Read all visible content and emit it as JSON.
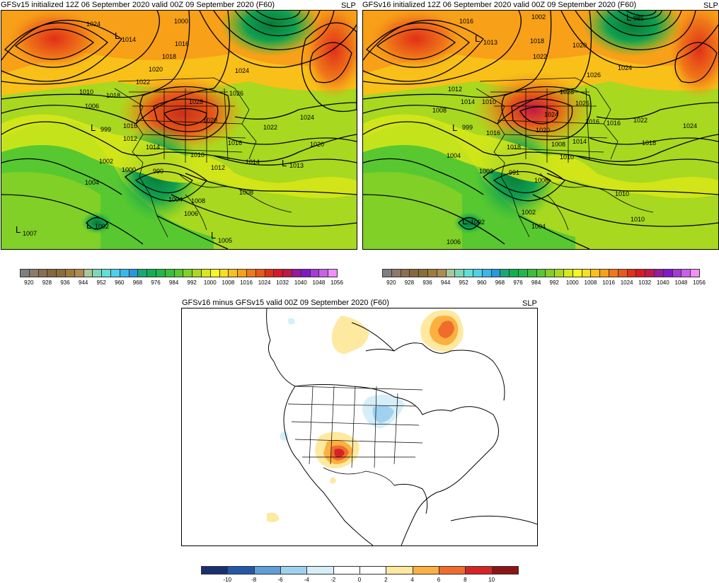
{
  "panels": {
    "left": {
      "title": "GFSv15 initialized 12Z 06 September 2020 valid 00Z 09 September 2020 (F60)",
      "variable": "SLP",
      "contour_labels": [
        "1024",
        "1014",
        "1016",
        "1018",
        "1000",
        "1020",
        "1022",
        "1024",
        "1026",
        "1028",
        "1010",
        "1006",
        "1018",
        "1020",
        "1016",
        "999",
        "1012",
        "1014",
        "1002",
        "1000",
        "990",
        "1004",
        "1016",
        "1010",
        "1012",
        "1014",
        "1013",
        "1020",
        "1022",
        "1024",
        "1008",
        "1004",
        "1006",
        "1008",
        "1005",
        "1002",
        "1007"
      ],
      "low_centers": [
        {
          "label": "L",
          "value": "1014"
        },
        {
          "label": "L",
          "value": "999"
        },
        {
          "label": "L",
          "value": "1013"
        },
        {
          "label": "L",
          "value": "1002"
        },
        {
          "label": "L",
          "value": "1007"
        },
        {
          "label": "L",
          "value": "1005"
        }
      ]
    },
    "right": {
      "title": "GFSv16 initialized 12Z 06 September 2020 valid 00Z 09 September 2020 (F60)",
      "variable": "SLP",
      "contour_labels": [
        "1002",
        "985",
        "1016",
        "1013",
        "1018",
        "1020",
        "1022",
        "1024",
        "1026",
        "1028",
        "1012",
        "1014",
        "1008",
        "1010",
        "1026",
        "1024",
        "1016",
        "1018",
        "1020",
        "1004",
        "1003",
        "991",
        "1008",
        "1010",
        "1014",
        "1016",
        "1018",
        "1022",
        "1024",
        "1006",
        "1002",
        "1004",
        "1010",
        "1002",
        "1006"
      ],
      "low_centers": [
        {
          "label": "L",
          "value": "1013"
        },
        {
          "label": "L",
          "value": "999"
        },
        {
          "label": "L",
          "value": "1002"
        },
        {
          "label": "L",
          "value": "985"
        }
      ]
    },
    "bottom": {
      "title": "GFSv16 minus GFSv15 valid 00Z 09 September 2020 (F60)",
      "variable": "SLP"
    }
  },
  "colorbar_slp": {
    "labels": [
      "920",
      "928",
      "936",
      "944",
      "952",
      "960",
      "968",
      "976",
      "984",
      "992",
      "1000",
      "1008",
      "1016",
      "1024",
      "1032",
      "1040",
      "1048",
      "1056"
    ],
    "colors": [
      "#7f7f7f",
      "#8c7a6a",
      "#8d6e4f",
      "#86673f",
      "#8a6d3b",
      "#a07a3c",
      "#b08a50",
      "#a8c89a",
      "#7fd6b8",
      "#5fe0d6",
      "#4fd0e8",
      "#38b8ec",
      "#2898dc",
      "#18a878",
      "#10b050",
      "#20b848",
      "#38c038",
      "#58c830",
      "#80d028",
      "#a8d820",
      "#d8e818",
      "#f8f820",
      "#f8e020",
      "#f8c018",
      "#f8a018",
      "#f07818",
      "#e85818",
      "#e03018",
      "#d81828",
      "#c01848",
      "#9818a0",
      "#8018c8",
      "#a838d8",
      "#c860e8",
      "#f090f8"
    ]
  },
  "colorbar_diff": {
    "labels": [
      "-10",
      "-8",
      "-6",
      "-4",
      "-2",
      "0",
      "2",
      "4",
      "6",
      "8",
      "10"
    ],
    "colors": [
      "#1a2f6e",
      "#2457a8",
      "#5e9fd8",
      "#9fd2f0",
      "#d6eef8",
      "#ffffff",
      "#ffffff",
      "#fee9a0",
      "#fbb040",
      "#f06c2c",
      "#d42424",
      "#8c1414"
    ]
  }
}
